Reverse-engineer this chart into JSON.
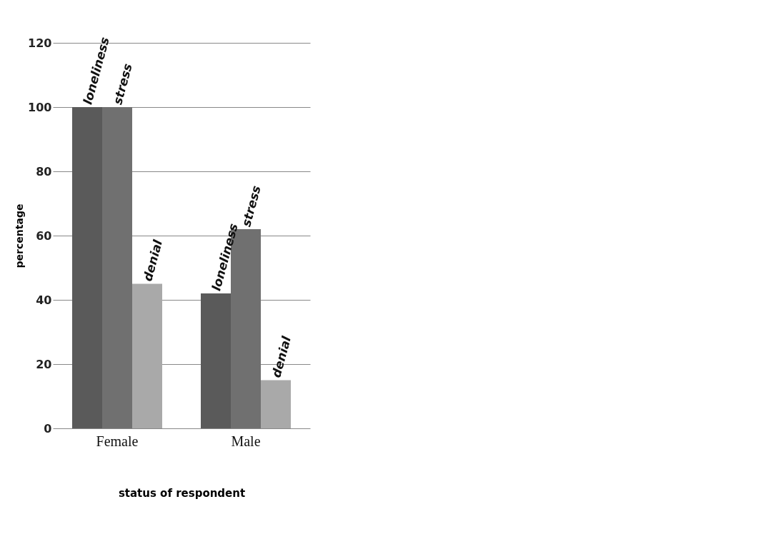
{
  "chart_data": {
    "type": "bar",
    "xlabel": "status of respondent",
    "ylabel": "percentage",
    "categories": [
      "Female",
      "Male"
    ],
    "series": [
      {
        "name": "loneliness",
        "color": "#5a5a5a",
        "values": [
          100,
          42
        ]
      },
      {
        "name": "stress",
        "color": "#707070",
        "values": [
          100,
          62
        ]
      },
      {
        "name": "denial",
        "color": "#a9a9a9",
        "values": [
          45,
          15
        ]
      }
    ],
    "ylim": [
      0,
      120
    ],
    "yticks": [
      0,
      20,
      40,
      60,
      80,
      100,
      120
    ],
    "grid": "y",
    "legend": false
  }
}
